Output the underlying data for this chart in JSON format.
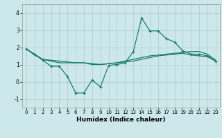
{
  "xlabel": "Humidex (Indice chaleur)",
  "bg_color": "#cce8ea",
  "grid_color": "#aacccc",
  "line_color": "#1a7a6e",
  "xlim": [
    -0.5,
    23.5
  ],
  "ylim": [
    -1.5,
    4.5
  ],
  "yticks": [
    -1,
    0,
    1,
    2,
    3,
    4
  ],
  "xticks": [
    0,
    1,
    2,
    3,
    4,
    5,
    6,
    7,
    8,
    9,
    10,
    11,
    12,
    13,
    14,
    15,
    16,
    17,
    18,
    19,
    20,
    21,
    22,
    23
  ],
  "series1_x": [
    0,
    1,
    2,
    3,
    4,
    5,
    6,
    7,
    8,
    9,
    10,
    11,
    12,
    13,
    14,
    15,
    16,
    17,
    18,
    19,
    20,
    21,
    22,
    23
  ],
  "series1_y": [
    1.9,
    1.6,
    1.25,
    0.9,
    0.9,
    0.3,
    -0.65,
    -0.65,
    0.1,
    -0.3,
    0.95,
    1.0,
    1.1,
    1.75,
    3.7,
    2.95,
    2.95,
    2.5,
    2.3,
    1.8,
    1.6,
    1.6,
    1.5,
    1.2
  ],
  "series2_x": [
    0,
    1,
    2,
    3,
    4,
    5,
    6,
    7,
    8,
    9,
    10,
    11,
    12,
    13,
    14,
    15,
    16,
    17,
    18,
    19,
    20,
    21,
    22,
    23
  ],
  "series2_y": [
    1.9,
    1.6,
    1.3,
    1.25,
    1.2,
    1.15,
    1.1,
    1.1,
    1.0,
    1.0,
    1.05,
    1.1,
    1.2,
    1.3,
    1.4,
    1.5,
    1.55,
    1.6,
    1.65,
    1.7,
    1.75,
    1.75,
    1.6,
    1.25
  ],
  "series3_x": [
    0,
    1,
    2,
    3,
    4,
    5,
    6,
    7,
    8,
    9,
    10,
    11,
    12,
    13,
    14,
    15,
    16,
    17,
    18,
    19,
    20,
    21,
    22,
    23
  ],
  "series3_y": [
    1.9,
    1.55,
    1.3,
    1.2,
    1.1,
    1.1,
    1.1,
    1.1,
    1.05,
    1.0,
    1.05,
    1.1,
    1.15,
    1.2,
    1.3,
    1.4,
    1.5,
    1.55,
    1.6,
    1.65,
    1.55,
    1.5,
    1.45,
    1.2
  ]
}
